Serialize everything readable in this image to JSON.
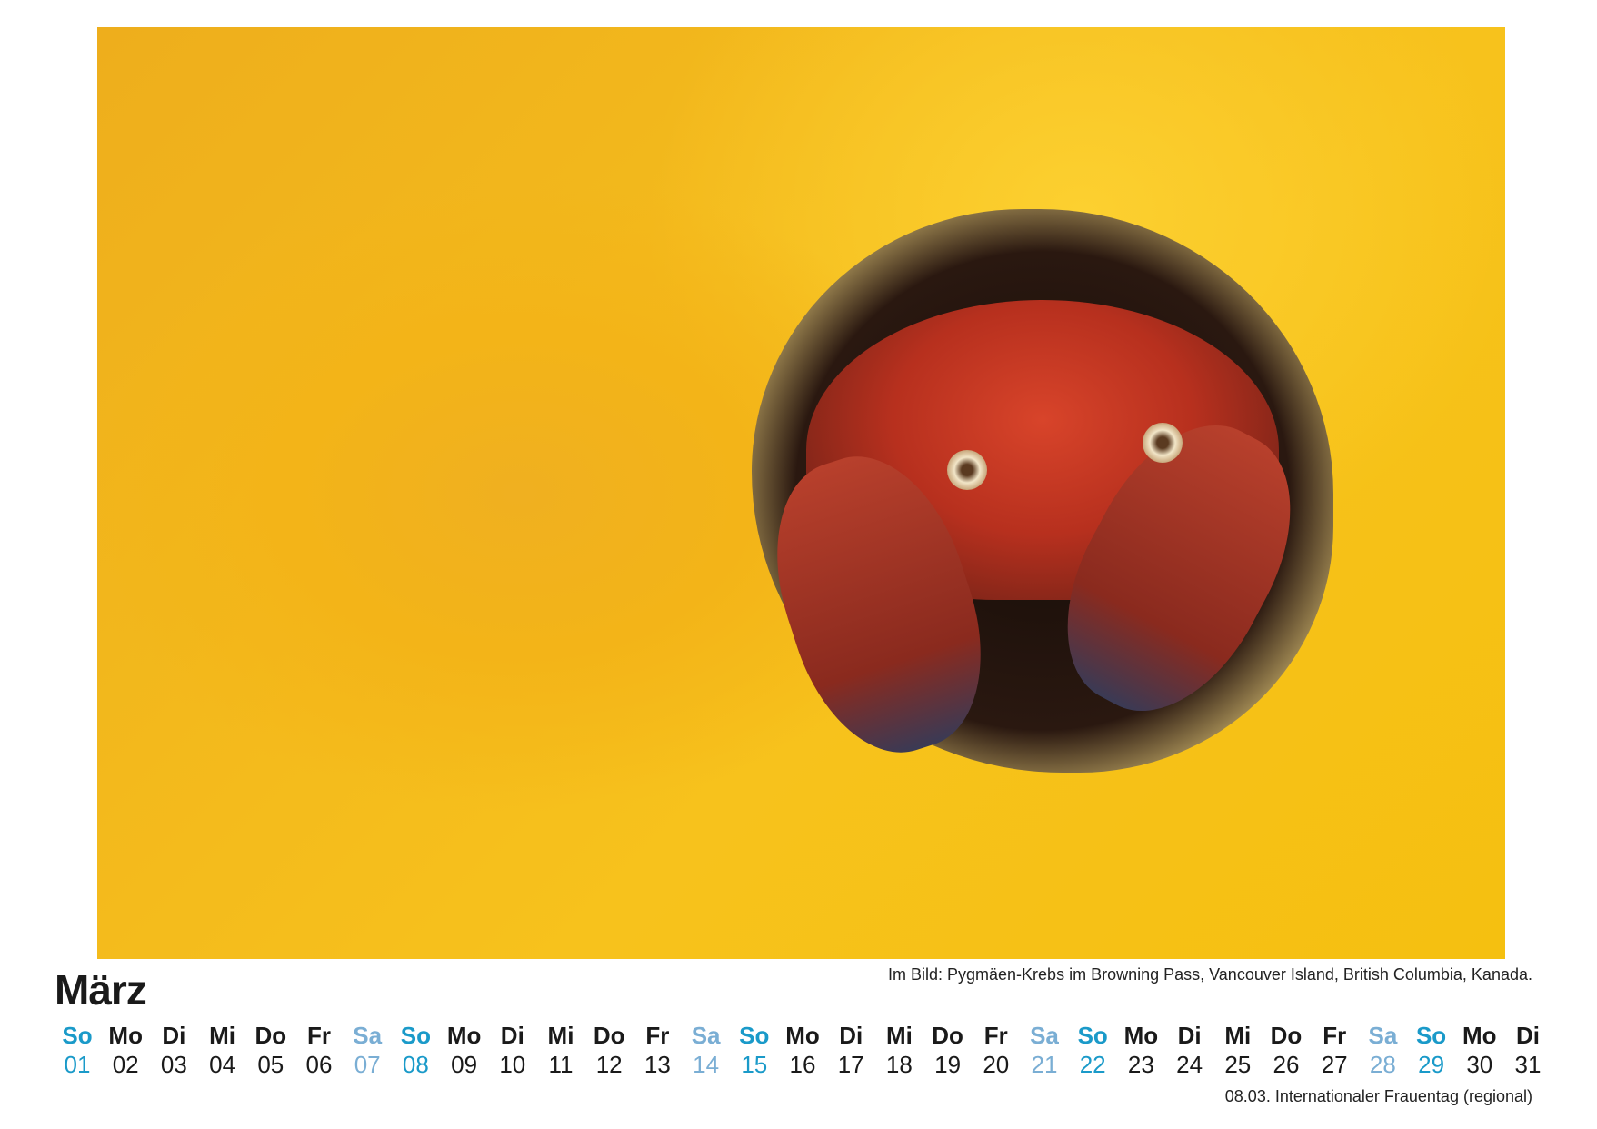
{
  "photo": {
    "description_icon": "photo-crab-in-yellow-sponge"
  },
  "month": "März",
  "caption": "Im Bild: Pygmäen-Krebs im Browning Pass, Vancouver Island, British Columbia, Kanada.",
  "holiday": "08.03. Internationaler Frauentag (regional)",
  "colors": {
    "sunday": "#1a9ac9",
    "saturday": "#7aaed4",
    "weekday": "#1a1a1a"
  },
  "days": [
    {
      "n": "So",
      "d": "01"
    },
    {
      "n": "Mo",
      "d": "02"
    },
    {
      "n": "Di",
      "d": "03"
    },
    {
      "n": "Mi",
      "d": "04"
    },
    {
      "n": "Do",
      "d": "05"
    },
    {
      "n": "Fr",
      "d": "06"
    },
    {
      "n": "Sa",
      "d": "07"
    },
    {
      "n": "So",
      "d": "08"
    },
    {
      "n": "Mo",
      "d": "09"
    },
    {
      "n": "Di",
      "d": "10"
    },
    {
      "n": "Mi",
      "d": "11"
    },
    {
      "n": "Do",
      "d": "12"
    },
    {
      "n": "Fr",
      "d": "13"
    },
    {
      "n": "Sa",
      "d": "14"
    },
    {
      "n": "So",
      "d": "15"
    },
    {
      "n": "Mo",
      "d": "16"
    },
    {
      "n": "Di",
      "d": "17"
    },
    {
      "n": "Mi",
      "d": "18"
    },
    {
      "n": "Do",
      "d": "19"
    },
    {
      "n": "Fr",
      "d": "20"
    },
    {
      "n": "Sa",
      "d": "21"
    },
    {
      "n": "So",
      "d": "22"
    },
    {
      "n": "Mo",
      "d": "23"
    },
    {
      "n": "Di",
      "d": "24"
    },
    {
      "n": "Mi",
      "d": "25"
    },
    {
      "n": "Do",
      "d": "26"
    },
    {
      "n": "Fr",
      "d": "27"
    },
    {
      "n": "Sa",
      "d": "28"
    },
    {
      "n": "So",
      "d": "29"
    },
    {
      "n": "Mo",
      "d": "30"
    },
    {
      "n": "Di",
      "d": "31"
    }
  ]
}
